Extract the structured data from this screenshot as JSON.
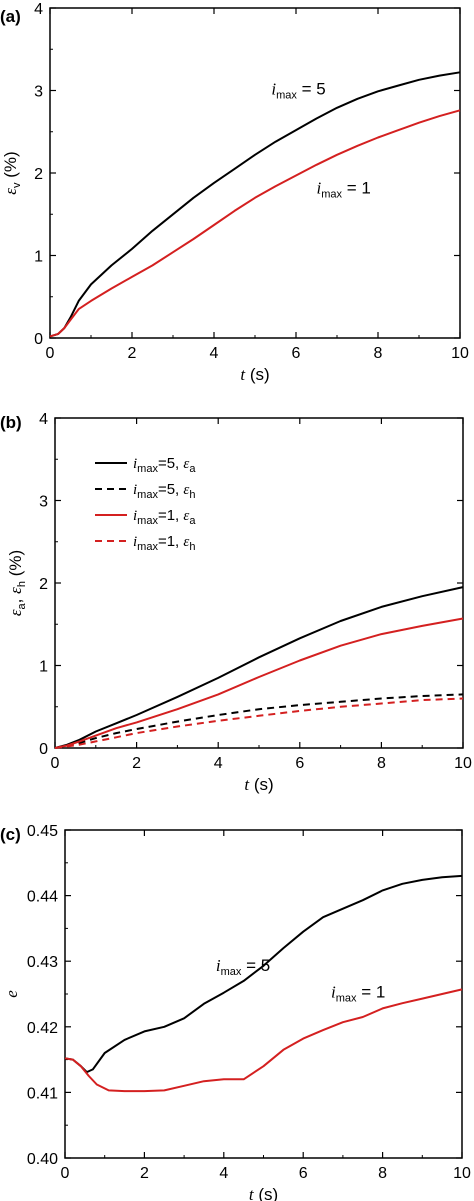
{
  "chart_data": [
    {
      "panel": "(a)",
      "type": "line",
      "xlabel": {
        "sym": "t",
        "unit": " (s)"
      },
      "ylabel": {
        "sym": "ε",
        "sub": "v",
        "unit": " (%)"
      },
      "xlim": [
        0,
        10
      ],
      "ylim": [
        0,
        4
      ],
      "xticks": [
        0,
        2,
        4,
        6,
        8,
        10
      ],
      "yticks": [
        0,
        1,
        2,
        3,
        4
      ],
      "series": [
        {
          "name": "i_max = 5",
          "color": "#000000",
          "dash": false,
          "x": [
            0,
            0.2,
            0.35,
            0.5,
            0.7,
            1,
            1.5,
            2,
            2.5,
            3,
            3.5,
            4,
            4.5,
            5,
            5.5,
            6,
            6.5,
            7,
            7.5,
            8,
            8.5,
            9,
            9.5,
            10
          ],
          "y": [
            0.02,
            0.05,
            0.12,
            0.25,
            0.45,
            0.65,
            0.88,
            1.08,
            1.3,
            1.5,
            1.7,
            1.88,
            2.05,
            2.22,
            2.38,
            2.52,
            2.66,
            2.79,
            2.9,
            2.99,
            3.06,
            3.13,
            3.18,
            3.22
          ]
        },
        {
          "name": "i_max = 1",
          "color": "#d42020",
          "dash": false,
          "x": [
            0,
            0.2,
            0.35,
            0.5,
            0.7,
            1,
            1.5,
            2,
            2.5,
            3,
            3.5,
            4,
            4.5,
            5,
            5.5,
            6,
            6.5,
            7,
            7.5,
            8,
            8.5,
            9,
            9.5,
            10
          ],
          "y": [
            0.02,
            0.05,
            0.12,
            0.22,
            0.35,
            0.45,
            0.6,
            0.74,
            0.88,
            1.04,
            1.2,
            1.37,
            1.54,
            1.7,
            1.84,
            1.97,
            2.1,
            2.22,
            2.33,
            2.43,
            2.52,
            2.61,
            2.69,
            2.76
          ]
        }
      ],
      "annotations": [
        {
          "sym": "i",
          "sub": "max",
          "text": " = 5",
          "x": 5.4,
          "y": 2.95
        },
        {
          "sym": "i",
          "sub": "max",
          "text": " = 1",
          "x": 6.5,
          "y": 1.75
        }
      ]
    },
    {
      "panel": "(b)",
      "type": "line",
      "xlabel": {
        "sym": "t",
        "unit": " (s)"
      },
      "ylabel": {
        "sym": "ε",
        "sub": "a",
        "sep": ", ",
        "sym2": "ε",
        "sub2": "h",
        "unit": " (%)"
      },
      "xlim": [
        0,
        10
      ],
      "ylim": [
        0,
        4
      ],
      "xticks": [
        0,
        2,
        4,
        6,
        8,
        10
      ],
      "yticks": [
        0,
        1,
        2,
        3,
        4
      ],
      "legend_position": "upper-left",
      "series": [
        {
          "name": "i_max=5, ε_a",
          "color": "#000000",
          "dash": false,
          "legend": {
            "sym": "i",
            "sub": "max",
            "text": "=5, ",
            "sym2": "ε",
            "sub2": "a"
          },
          "x": [
            0,
            0.3,
            0.6,
            1,
            1.5,
            2,
            3,
            4,
            5,
            6,
            7,
            8,
            9,
            10
          ],
          "y": [
            0,
            0.04,
            0.1,
            0.2,
            0.3,
            0.4,
            0.62,
            0.85,
            1.1,
            1.33,
            1.54,
            1.71,
            1.84,
            1.95
          ]
        },
        {
          "name": "i_max=5, ε_h",
          "color": "#000000",
          "dash": true,
          "legend": {
            "sym": "i",
            "sub": "max",
            "text": "=5, ",
            "sym2": "ε",
            "sub2": "h"
          },
          "x": [
            0,
            0.3,
            0.6,
            1,
            1.5,
            2,
            3,
            4,
            5,
            6,
            7,
            8,
            9,
            10
          ],
          "y": [
            0,
            0.03,
            0.06,
            0.12,
            0.18,
            0.23,
            0.32,
            0.4,
            0.47,
            0.52,
            0.56,
            0.6,
            0.63,
            0.65
          ]
        },
        {
          "name": "i_max=1, ε_a",
          "color": "#d42020",
          "dash": false,
          "legend": {
            "sym": "i",
            "sub": "max",
            "text": "=1, ",
            "sym2": "ε",
            "sub2": "a"
          },
          "x": [
            0,
            0.3,
            0.6,
            1,
            1.5,
            2,
            3,
            4,
            5,
            6,
            7,
            8,
            9,
            10
          ],
          "y": [
            0,
            0.03,
            0.08,
            0.15,
            0.24,
            0.31,
            0.47,
            0.65,
            0.86,
            1.06,
            1.24,
            1.38,
            1.48,
            1.57
          ]
        },
        {
          "name": "i_max=1, ε_h",
          "color": "#d42020",
          "dash": true,
          "legend": {
            "sym": "i",
            "sub": "max",
            "text": "=1, ",
            "sym2": "ε",
            "sub2": "h"
          },
          "x": [
            0,
            0.3,
            0.6,
            1,
            1.5,
            2,
            3,
            4,
            5,
            6,
            7,
            8,
            9,
            10
          ],
          "y": [
            0,
            0.02,
            0.04,
            0.08,
            0.13,
            0.18,
            0.26,
            0.33,
            0.39,
            0.45,
            0.5,
            0.54,
            0.58,
            0.6
          ]
        }
      ]
    },
    {
      "panel": "(c)",
      "type": "line",
      "xlabel": {
        "sym": "t",
        "unit": " (s)"
      },
      "ylabel": {
        "sym": "e",
        "unit": ""
      },
      "xlim": [
        0,
        10
      ],
      "ylim": [
        0.4,
        0.45
      ],
      "xticks": [
        0,
        2,
        4,
        6,
        8,
        10
      ],
      "yticks": [
        0.4,
        0.41,
        0.42,
        0.43,
        0.44,
        0.45
      ],
      "ytick_labels": [
        "0.40",
        "0.41",
        "0.42",
        "0.43",
        "0.44",
        "0.45"
      ],
      "series": [
        {
          "name": "i_max = 5",
          "color": "#000000",
          "dash": false,
          "x": [
            0,
            0.2,
            0.4,
            0.55,
            0.7,
            1,
            1.5,
            2,
            2.5,
            3,
            3.5,
            4,
            4.5,
            5,
            5.5,
            6,
            6.5,
            7,
            7.5,
            8,
            8.5,
            9,
            9.5,
            10
          ],
          "y": [
            0.4152,
            0.415,
            0.414,
            0.4131,
            0.4135,
            0.416,
            0.418,
            0.4193,
            0.42,
            0.4213,
            0.4235,
            0.4252,
            0.427,
            0.4293,
            0.432,
            0.4345,
            0.4367,
            0.438,
            0.4393,
            0.4408,
            0.4418,
            0.4424,
            0.4428,
            0.443
          ]
        },
        {
          "name": "i_max = 1",
          "color": "#d42020",
          "dash": false,
          "x": [
            0,
            0.2,
            0.4,
            0.6,
            0.8,
            1.1,
            1.5,
            2,
            2.5,
            3,
            3.5,
            4,
            4.5,
            5,
            5.5,
            6,
            6.5,
            7,
            7.5,
            8,
            8.5,
            9,
            9.5,
            10
          ],
          "y": [
            0.4152,
            0.415,
            0.414,
            0.4125,
            0.4112,
            0.4103,
            0.4102,
            0.4102,
            0.4103,
            0.411,
            0.4117,
            0.412,
            0.412,
            0.414,
            0.4165,
            0.4182,
            0.4195,
            0.4207,
            0.4215,
            0.4228,
            0.4236,
            0.4243,
            0.425,
            0.4257
          ]
        }
      ],
      "annotations": [
        {
          "sym": "i",
          "sub": "max",
          "text": " = 5",
          "x": 3.8,
          "y": 0.4285
        },
        {
          "sym": "i",
          "sub": "max",
          "text": " = 1",
          "x": 6.7,
          "y": 0.4245
        }
      ]
    }
  ]
}
